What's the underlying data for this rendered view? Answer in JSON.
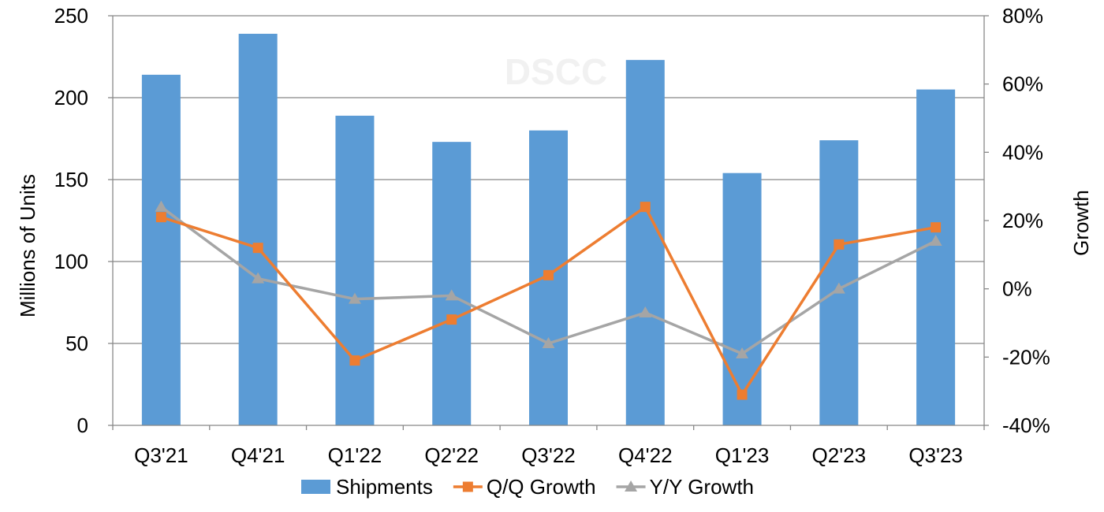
{
  "watermark": "DSCC",
  "chart_data": {
    "type": "bar",
    "categories": [
      "Q3'21",
      "Q4'21",
      "Q1'22",
      "Q2'22",
      "Q3'22",
      "Q4'22",
      "Q1'23",
      "Q2'23",
      "Q3'23"
    ],
    "series": [
      {
        "name": "Shipments",
        "type": "bar",
        "axis": "left",
        "color": "#5b9bd5",
        "values": [
          214,
          239,
          189,
          173,
          180,
          223,
          154,
          174,
          205
        ]
      },
      {
        "name": "Q/Q Growth",
        "type": "line",
        "axis": "right",
        "color": "#ed7d31",
        "marker": "square",
        "values": [
          21,
          12,
          -21,
          -9,
          4,
          24,
          -31,
          13,
          18
        ]
      },
      {
        "name": "Y/Y Growth",
        "type": "line",
        "axis": "right",
        "color": "#a5a5a5",
        "marker": "triangle",
        "values": [
          24,
          3,
          -3,
          -2,
          -16,
          -7,
          -19,
          0,
          14
        ]
      }
    ],
    "ylabel": "Millions of Units",
    "y2label": "Growth",
    "ylim": [
      0,
      250
    ],
    "y2lim": [
      -40,
      80
    ],
    "yticks": [
      "0",
      "50",
      "100",
      "150",
      "200",
      "250"
    ],
    "y2ticks": [
      "-40%",
      "-20%",
      "0%",
      "20%",
      "40%",
      "60%",
      "80%"
    ],
    "grid": true,
    "legend_position": "bottom"
  }
}
